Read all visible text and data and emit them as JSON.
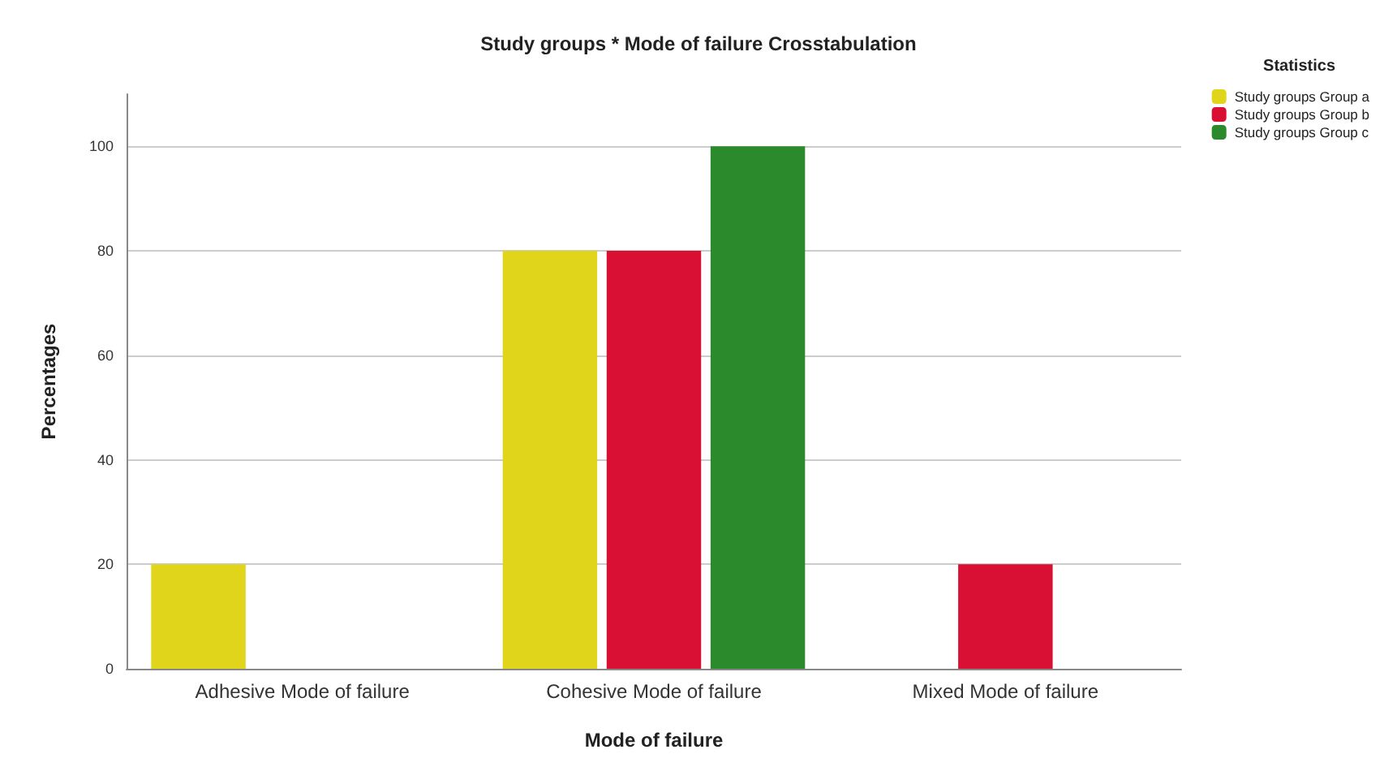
{
  "chart_data": {
    "type": "bar",
    "title": "Study groups * Mode of failure Crosstabulation",
    "xlabel": "Mode of failure",
    "ylabel": "Percentages",
    "legend_title": "Statistics",
    "categories": [
      "Adhesive Mode of failure",
      "Cohesive Mode of failure",
      "Mixed Mode of failure"
    ],
    "series": [
      {
        "name": "Study groups Group a",
        "color": "#e0d51a",
        "values": [
          20,
          80,
          null
        ]
      },
      {
        "name": "Study groups Group b",
        "color": "#d90f34",
        "values": [
          null,
          80,
          20
        ]
      },
      {
        "name": "Study groups Group c",
        "color": "#2b8a2b",
        "values": [
          null,
          100,
          null
        ]
      }
    ],
    "ylim": [
      0,
      110
    ],
    "yticks": [
      0,
      20,
      40,
      60,
      80,
      100
    ],
    "grid": "y",
    "legend": "top right"
  }
}
